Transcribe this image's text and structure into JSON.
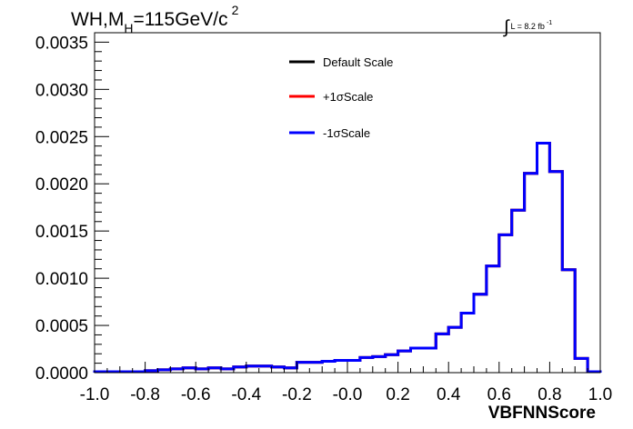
{
  "chart_data": {
    "type": "histogram",
    "title_parts": {
      "pre": "WH,M",
      "sub": "H",
      "mid": "=115GeV/c",
      "sup": "2"
    },
    "lumi_parts": {
      "integral": "∫",
      "text": "L = 8.2 fb",
      "sup": "-1"
    },
    "xlabel": "VBFNNScore",
    "ylabel": "",
    "xlim": [
      -1.0,
      1.0
    ],
    "ylim": [
      0.0,
      0.0036
    ],
    "xticks": [
      "-1.0",
      "-0.8",
      "-0.6",
      "-0.4",
      "-0.2",
      "-0.0",
      "0.2",
      "0.4",
      "0.6",
      "0.8",
      "1.0"
    ],
    "xtick_values": [
      -1.0,
      -0.8,
      -0.6,
      -0.4,
      -0.2,
      0.0,
      0.2,
      0.4,
      0.6,
      0.8,
      1.0
    ],
    "yticks": [
      "0.0000",
      "0.0005",
      "0.0010",
      "0.0015",
      "0.0020",
      "0.0025",
      "0.0030",
      "0.0035"
    ],
    "ytick_values": [
      0.0,
      0.0005,
      0.001,
      0.0015,
      0.002,
      0.0025,
      0.003,
      0.0035
    ],
    "bin_edges": [
      -1.0,
      -0.95,
      -0.9,
      -0.85,
      -0.8,
      -0.75,
      -0.7,
      -0.65,
      -0.6,
      -0.55,
      -0.5,
      -0.45,
      -0.4,
      -0.35,
      -0.3,
      -0.25,
      -0.2,
      -0.15,
      -0.1,
      -0.05,
      0.0,
      0.05,
      0.1,
      0.15,
      0.2,
      0.25,
      0.3,
      0.35,
      0.4,
      0.45,
      0.5,
      0.55,
      0.6,
      0.65,
      0.7,
      0.75,
      0.8,
      0.85,
      0.9,
      0.95,
      1.0
    ],
    "series": [
      {
        "name": "Default Scale",
        "color": "#000000",
        "values": [
          1e-05,
          1e-05,
          1e-05,
          1e-05,
          2e-05,
          3e-05,
          4e-05,
          5e-05,
          4e-05,
          5e-05,
          4e-05,
          6e-05,
          7e-05,
          7e-05,
          6e-05,
          5e-05,
          0.00011,
          0.00011,
          0.00012,
          0.00013,
          0.00013,
          0.00016,
          0.00017,
          0.00019,
          0.00023,
          0.00026,
          0.00026,
          0.00041,
          0.00048,
          0.00063,
          0.00083,
          0.00113,
          0.00146,
          0.00172,
          0.00211,
          0.00243,
          0.00213,
          0.00109,
          0.00015,
          1e-05
        ]
      },
      {
        "name": "+1σScale",
        "color": "#ff0000",
        "values": [
          1e-05,
          1e-05,
          1e-05,
          1e-05,
          2e-05,
          3e-05,
          4e-05,
          5e-05,
          4e-05,
          5e-05,
          4e-05,
          6e-05,
          7e-05,
          7e-05,
          6e-05,
          5e-05,
          0.00011,
          0.00011,
          0.00012,
          0.00013,
          0.00013,
          0.00016,
          0.00017,
          0.00019,
          0.00023,
          0.00026,
          0.00026,
          0.00041,
          0.00048,
          0.00063,
          0.00083,
          0.00113,
          0.00146,
          0.00172,
          0.00211,
          0.00243,
          0.00213,
          0.00109,
          0.00015,
          1e-05
        ]
      },
      {
        "name": "-1σScale",
        "color": "#0000ff",
        "values": [
          1e-05,
          1e-05,
          1e-05,
          1e-05,
          2e-05,
          3e-05,
          4e-05,
          5e-05,
          4e-05,
          5e-05,
          4e-05,
          6e-05,
          7e-05,
          7e-05,
          6e-05,
          5e-05,
          0.00011,
          0.00011,
          0.00012,
          0.00013,
          0.00013,
          0.00016,
          0.00017,
          0.00019,
          0.00023,
          0.00026,
          0.00026,
          0.00041,
          0.00048,
          0.00063,
          0.00083,
          0.00113,
          0.00146,
          0.00172,
          0.00211,
          0.00243,
          0.00213,
          0.00109,
          0.00015,
          1e-05
        ]
      }
    ],
    "legend_position": "top-center",
    "grid": false
  }
}
